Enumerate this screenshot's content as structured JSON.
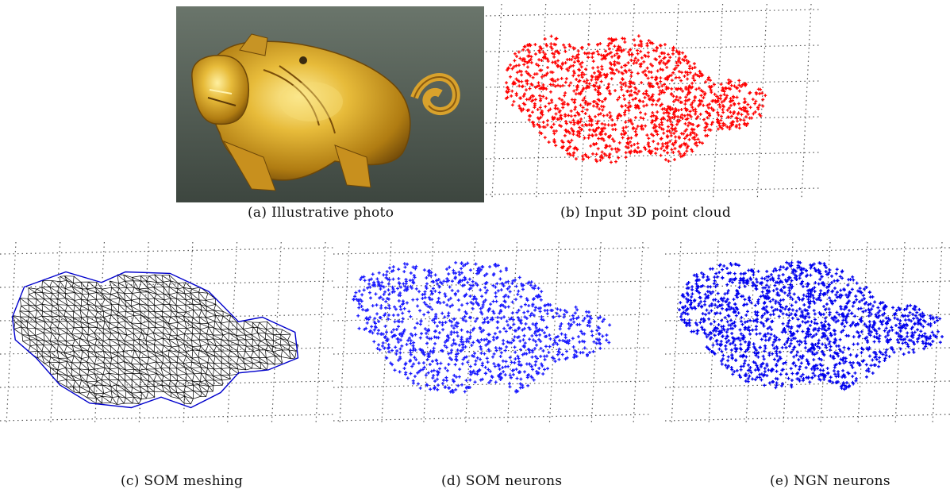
{
  "panels": [
    {
      "id": "a",
      "caption": "(a) Illustrative photo",
      "kind": "photo"
    },
    {
      "id": "b",
      "caption": "(b) Input 3D point cloud",
      "kind": "points",
      "color": "#ff0000"
    },
    {
      "id": "c",
      "caption": "(c) SOM meshing",
      "kind": "mesh",
      "color": "#000000",
      "node_color": "#0000cc"
    },
    {
      "id": "d",
      "caption": "(d) SOM neurons",
      "kind": "points",
      "color": "#1a1aff"
    },
    {
      "id": "e",
      "caption": "(e) NGN neurons",
      "kind": "points",
      "color": "#0000ee"
    }
  ],
  "colors": {
    "grid": "#555555",
    "photo_bg": "#4e5a52",
    "gold": "#d8a52a",
    "gold_light": "#f6dd7a",
    "gold_dark": "#8a5a10"
  }
}
